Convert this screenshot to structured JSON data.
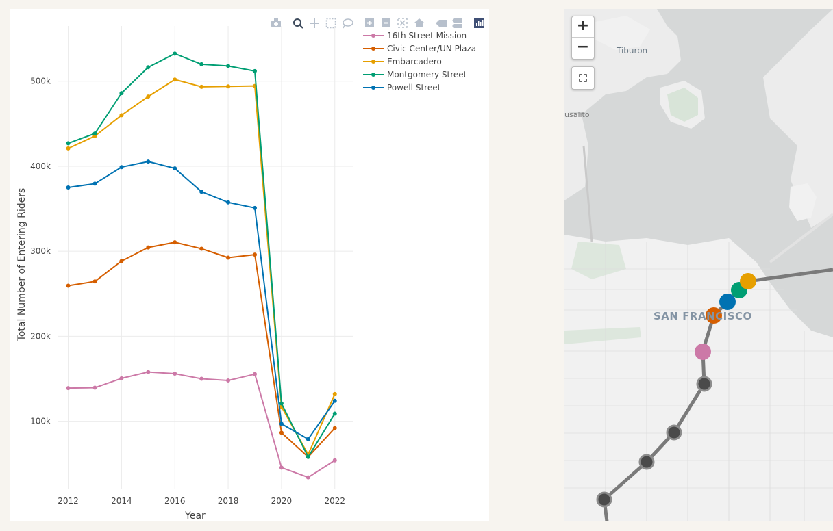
{
  "chart_data": {
    "type": "line",
    "xlabel": "Year",
    "ylabel": "Total Number of Entering Riders",
    "x": [
      2012,
      2013,
      2014,
      2015,
      2016,
      2017,
      2018,
      2019,
      2020,
      2021,
      2022
    ],
    "xticks": [
      2012,
      2014,
      2016,
      2018,
      2020,
      2022
    ],
    "yticks": [
      100000,
      200000,
      300000,
      400000,
      500000
    ],
    "ytick_labels": [
      "100k",
      "200k",
      "300k",
      "400k",
      "500k"
    ],
    "xlim": [
      2011.6,
      2022.7
    ],
    "ylim": [
      20000,
      565000
    ],
    "grid": true,
    "legend_position": "top-right",
    "series": [
      {
        "name": "16th Street Mission",
        "color": "#cc79a7",
        "values": [
          139000,
          139500,
          150500,
          158000,
          156000,
          150000,
          148000,
          155500,
          45500,
          34000,
          54000
        ]
      },
      {
        "name": "Civic Center/UN Plaza",
        "color": "#d55e00",
        "values": [
          259500,
          264500,
          288500,
          304500,
          310500,
          303000,
          292500,
          296000,
          86500,
          58000,
          92000
        ]
      },
      {
        "name": "Embarcadero",
        "color": "#e69f00",
        "values": [
          421000,
          435500,
          460000,
          482000,
          502000,
          493500,
          494000,
          494500,
          117000,
          61000,
          132000
        ]
      },
      {
        "name": "Montgomery Street",
        "color": "#009e73",
        "values": [
          427000,
          438500,
          486000,
          516500,
          532500,
          520000,
          518000,
          512000,
          121000,
          58000,
          109000
        ]
      },
      {
        "name": "Powell Street",
        "color": "#0072b2",
        "values": [
          375000,
          379500,
          399000,
          405500,
          397500,
          370000,
          357500,
          351000,
          97000,
          79000,
          124000
        ]
      }
    ]
  },
  "toolbar": {
    "icons": [
      "camera-icon",
      "zoom-icon",
      "pan-icon",
      "box-select-icon",
      "lasso-icon",
      "zoom-in-icon",
      "zoom-out-icon",
      "autoscale-icon",
      "reset-axes-icon",
      "hover-closest-icon",
      "hover-compare-icon",
      "plotly-logo-icon"
    ]
  },
  "map": {
    "zoom_in_label": "+",
    "zoom_out_label": "−",
    "fullscreen_icon": "fullscreen-icon",
    "place_labels": {
      "tiburon": "Tiburon",
      "sausalito": "usalito",
      "san_francisco": "SAN FRANCISCO"
    },
    "colors": {
      "water": "#d6d8d8",
      "land": "#f2f2f2",
      "line": "#7a7a7a"
    }
  }
}
